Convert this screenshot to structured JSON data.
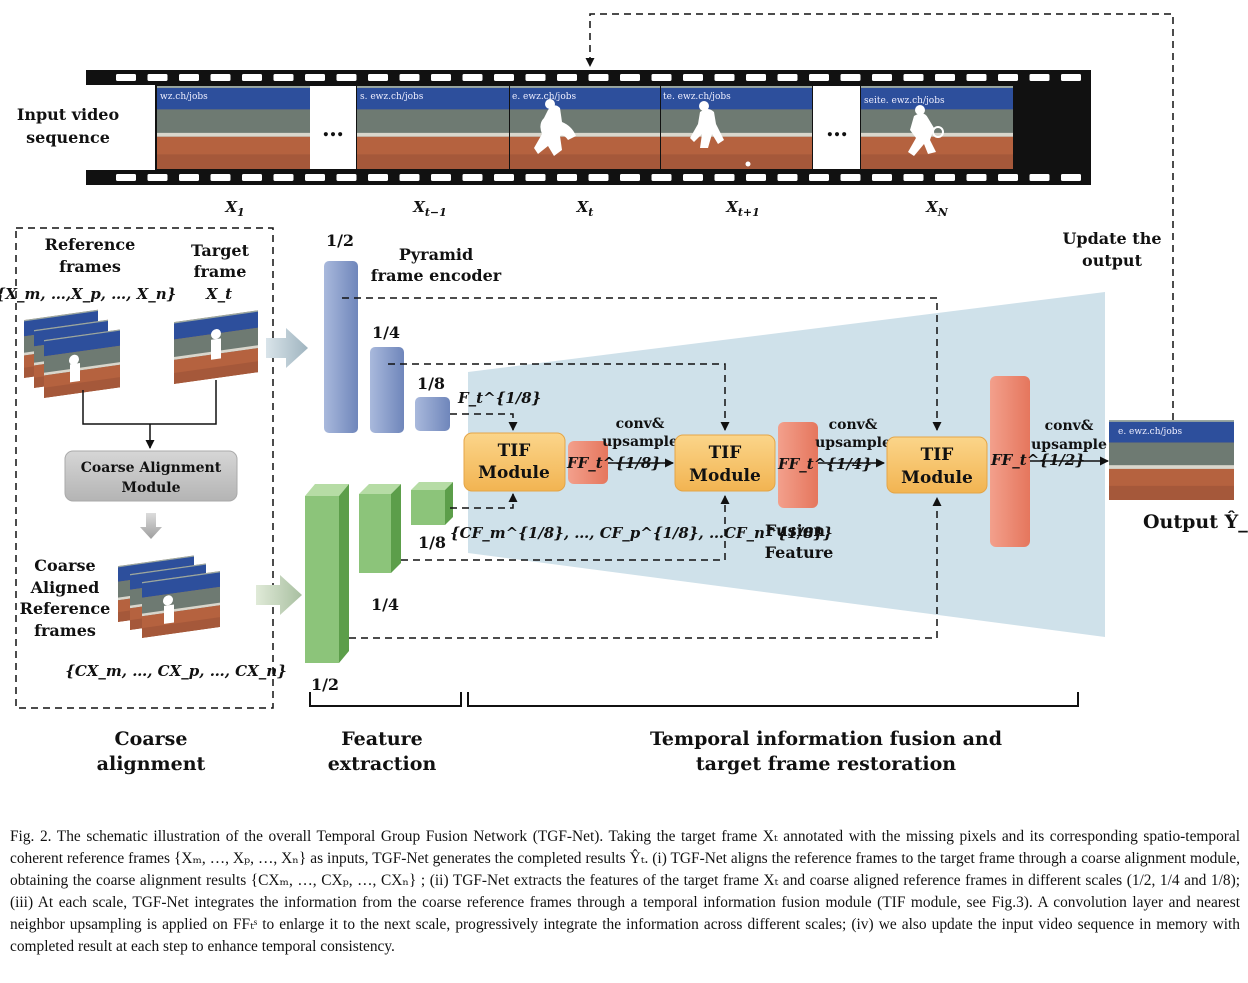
{
  "input": {
    "title_line1": "Input video",
    "title_line2": "sequence",
    "frame_labels": [
      {
        "var": "X",
        "sub": "1"
      },
      {
        "var": "X",
        "sub": "t−1"
      },
      {
        "var": "X",
        "sub": "t"
      },
      {
        "var": "X",
        "sub": "t+1"
      },
      {
        "var": "X",
        "sub": "N"
      }
    ],
    "ellipsis": "…",
    "banner_texts": [
      "wz.ch/jobs",
      "s. ewz.ch/jobs",
      "e. ewz.ch/jobs",
      "te. ewz.ch/jobs",
      "seite. ewz.ch/jobs"
    ]
  },
  "coarse": {
    "ref_line1": "Reference",
    "ref_line2": "frames",
    "ref_set": "{X_m, …,X_p, …, X_n}",
    "target_line1": "Target",
    "target_line2": "frame",
    "target_var": "X_t",
    "module_line1": "Coarse Alignment",
    "module_line2": "Module",
    "aligned_line1": "Coarse",
    "aligned_line2": "Aligned",
    "aligned_line3": "Reference",
    "aligned_line4": "frames",
    "aligned_set": "{CX_m, …, CX_p, …, CX_n}"
  },
  "encoder": {
    "title_line1": "Pyramid",
    "title_line2": "frame encoder",
    "scale_half": "1/2",
    "scale_quarter": "1/4",
    "scale_eighth": "1/8",
    "f_label": "F_t^{1/8}",
    "cf_label": "{CF_m^{1/8}, …, CF_p^{1/8}, …CF_n^{1/8}}"
  },
  "fusion": {
    "tif_line1": "TIF",
    "tif_line2": "Module",
    "ff_eighth": "FF_t^{1/8}",
    "ff_quarter": "FF_t^{1/4}",
    "ff_half": "FF_t^{1/2}",
    "conv_line1": "conv&",
    "conv_line2": "upsample",
    "fusion_line1": "Fusion",
    "fusion_line2": "Feature",
    "update_line1": "Update the",
    "update_line2": "output",
    "output_label": "Output Ŷ_t"
  },
  "sections": {
    "coarse_line1": "Coarse",
    "coarse_line2": "alignment",
    "feature_line1": "Feature",
    "feature_line2": "extraction",
    "temporal_line1": "Temporal information fusion and",
    "temporal_line2": "target frame restoration"
  },
  "caption": "Fig. 2.  The schematic illustration of the overall Temporal Group Fusion Network (TGF-Net). Taking the target frame Xₜ annotated with the missing pixels and its corresponding spatio-temporal coherent reference frames {Xₘ, …, Xₚ, …, Xₙ} as inputs, TGF-Net generates the completed results Ŷₜ. (i) TGF-Net aligns the reference frames to the target frame through a coarse alignment module, obtaining the coarse alignment results {CXₘ, …, CXₚ, …, CXₙ} ; (ii) TGF-Net extracts the features of the target frame Xₜ and coarse aligned reference frames in different scales (1/2, 1/4 and 1/8); (iii) At each scale, TGF-Net integrates the information from the coarse reference frames through a temporal information fusion module (TIF module, see Fig.3). A convolution layer and nearest neighbor upsampling is applied on FFₜˢ to enlarge it to the next scale, progressively integrate the information across different scales; (iv) we also update the input video sequence in memory with completed result at each step to enhance temporal consistency.",
  "colors": {
    "encoder_blue": "#8fa3cf",
    "encoder_green": "#8cc47a",
    "tif_orange": "#f7c469",
    "ff_red": "#ec8b74",
    "fusion_bg": "#cfe1ea",
    "module_gray": "#c7c7c7",
    "court_clay": "#b5623f",
    "banner_blue": "#2d4f9c"
  }
}
